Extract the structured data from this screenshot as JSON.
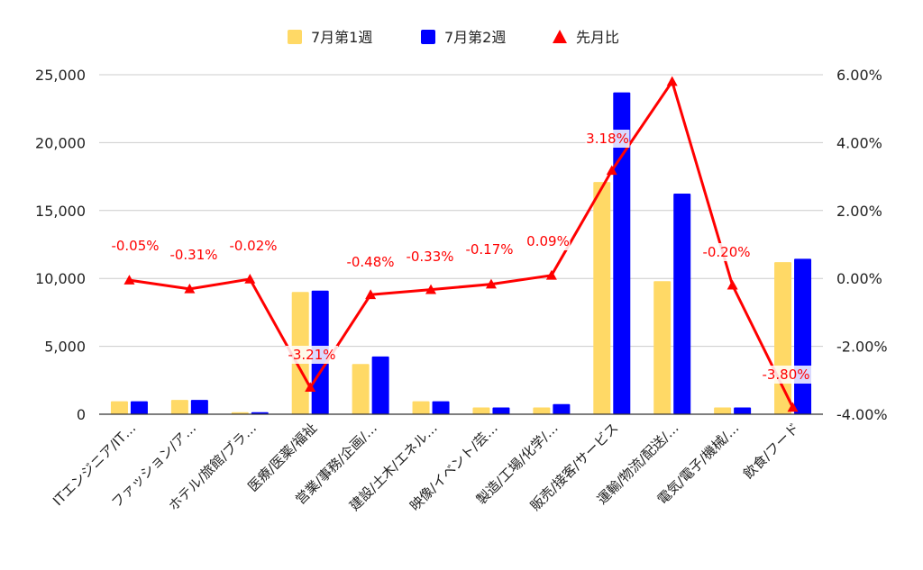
{
  "chart_data": {
    "type": "bar",
    "categories": [
      "ITエンジニア/IT…",
      "ファッション/ア…",
      "ホテル/旅館/ブラ…",
      "医療/医薬/福祉",
      "営業/事務/企画/…",
      "建設/土木/エネル…",
      "映像/イベント/芸…",
      "製造/工場/化学/…",
      "販売/接客/サービス",
      "運輸/物流/配送/…",
      "電気/電子/機械/…",
      "飲食/フード"
    ],
    "series": [
      {
        "name": "7月第1週",
        "axis": "left",
        "type": "bar",
        "color": "#FFD966",
        "values": [
          950,
          1050,
          150,
          9000,
          3700,
          950,
          500,
          500,
          17100,
          9800,
          500,
          11200
        ]
      },
      {
        "name": "7月第2週",
        "axis": "left",
        "type": "bar",
        "color": "#0000FF",
        "values": [
          950,
          1050,
          150,
          9100,
          4250,
          950,
          500,
          750,
          23700,
          16250,
          500,
          11450
        ]
      },
      {
        "name": "先月比",
        "axis": "right",
        "type": "line",
        "color": "#FF0000",
        "marker": "triangle",
        "values": [
          -0.05,
          -0.31,
          -0.02,
          -3.21,
          -0.48,
          -0.33,
          -0.17,
          0.09,
          3.18,
          5.8,
          -0.2,
          -3.8
        ],
        "labels": [
          "-0.05%",
          "-0.31%",
          "-0.02%",
          "-3.21%",
          "-0.48%",
          "-0.33%",
          "-0.17%",
          "0.09%",
          "3.18%",
          "",
          "-0.20%",
          "-3.80%"
        ]
      }
    ],
    "y_left": {
      "ylim": [
        0,
        25000
      ],
      "ticks": [
        0,
        5000,
        10000,
        15000,
        20000,
        25000
      ],
      "tick_labels": [
        "0",
        "5,000",
        "10,000",
        "15,000",
        "20,000",
        "25,000"
      ]
    },
    "y_right": {
      "ylim": [
        -4,
        6
      ],
      "ticks": [
        -4,
        -2,
        0,
        2,
        4,
        6
      ],
      "tick_labels": [
        "-4.00%",
        "-2.00%",
        "0.00%",
        "2.00%",
        "4.00%",
        "6.00%"
      ]
    },
    "grid": true,
    "legend": "top-center",
    "title": "",
    "xlabel": "",
    "ylabel": ""
  }
}
